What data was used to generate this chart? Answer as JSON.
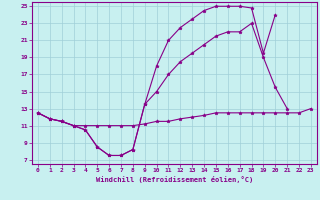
{
  "bg_color": "#c8f0f0",
  "grid_color": "#a0d0d8",
  "line_color": "#880088",
  "xlabel": "Windchill (Refroidissement éolien,°C)",
  "xlim": [
    -0.5,
    23.5
  ],
  "ylim": [
    6.5,
    25.5
  ],
  "yticks": [
    7,
    9,
    11,
    13,
    15,
    17,
    19,
    21,
    23,
    25
  ],
  "xticks": [
    0,
    1,
    2,
    3,
    4,
    5,
    6,
    7,
    8,
    9,
    10,
    11,
    12,
    13,
    14,
    15,
    16,
    17,
    18,
    19,
    20,
    21,
    22,
    23
  ],
  "line1_x": [
    0,
    1,
    2,
    3,
    4,
    5,
    6,
    7,
    8,
    9,
    10,
    11,
    12,
    13,
    14,
    15,
    16,
    17,
    18,
    19,
    20,
    21,
    22,
    23
  ],
  "line1_y": [
    12.5,
    11.8,
    11.5,
    11.0,
    11.0,
    11.0,
    11.0,
    11.0,
    11.0,
    11.2,
    11.5,
    11.5,
    11.8,
    12.0,
    12.2,
    12.5,
    12.5,
    12.5,
    12.5,
    12.5,
    12.5,
    12.5,
    12.5,
    13.0
  ],
  "line2_x": [
    0,
    1,
    2,
    3,
    4,
    5,
    6,
    7,
    8,
    9,
    10,
    11,
    12,
    13,
    14,
    15,
    16,
    17,
    18,
    19,
    20,
    21
  ],
  "line2_y": [
    12.5,
    11.8,
    11.5,
    11.0,
    10.5,
    8.5,
    7.5,
    7.5,
    8.2,
    13.5,
    15.0,
    17.0,
    18.5,
    19.5,
    20.5,
    21.5,
    22.0,
    22.0,
    23.0,
    19.0,
    15.5,
    13.0
  ],
  "line3_x": [
    0,
    1,
    2,
    3,
    4,
    5,
    6,
    7,
    8,
    9,
    10,
    11,
    12,
    13,
    14,
    15,
    16,
    17,
    18,
    19,
    20
  ],
  "line3_y": [
    12.5,
    11.8,
    11.5,
    11.0,
    10.5,
    8.5,
    7.5,
    7.5,
    8.2,
    13.5,
    18.0,
    21.0,
    22.5,
    23.5,
    24.5,
    25.0,
    25.0,
    25.0,
    24.8,
    19.5,
    24.0
  ]
}
